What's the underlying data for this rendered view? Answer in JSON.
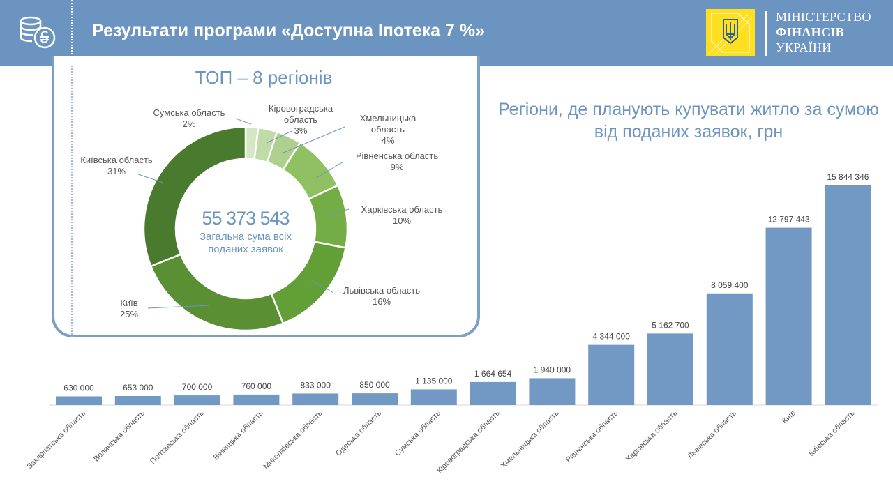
{
  "header": {
    "title": "Результати програми «Доступна Іпотека 7 %»",
    "icon": "coins-hryvnia-icon",
    "ministry_lines": [
      "МІНІСТЕРСТВО",
      "ФІНАНСІВ",
      "УКРАЇНИ"
    ],
    "emblem": "trident-emblem-icon"
  },
  "colors": {
    "header_bg": "#6b95c0",
    "bar": "#7199c4",
    "emblem_bg": "#ffe021",
    "donut": [
      "#d5e6c3",
      "#c1dba8",
      "#aed08d",
      "#8fc061",
      "#74ac46",
      "#629f36",
      "#5a8f34",
      "#4a7a2d"
    ]
  },
  "chart_data": [
    {
      "type": "pie",
      "title": "ТОП – 8 регіонів",
      "center_value": "55 373 543",
      "center_caption": "Загальна сума всіх поданих заявок",
      "slices": [
        {
          "name": "Сумська  область",
          "percent": 2
        },
        {
          "name": "Кіровоградська область",
          "percent": 3
        },
        {
          "name": "Хмельницька область",
          "percent": 4
        },
        {
          "name": "Рівненська  область",
          "percent": 9
        },
        {
          "name": "Харківська  область",
          "percent": 10
        },
        {
          "name": "Львівська  область",
          "percent": 16
        },
        {
          "name": "Київ",
          "percent": 25
        },
        {
          "name": "Київська  область",
          "percent": 31
        }
      ]
    },
    {
      "type": "bar",
      "title": "Регіони, де планують купувати житло за сумою від поданих заявок, грн",
      "categories": [
        "Закарпатська область",
        "Волинська область",
        "Полтавська область",
        "Вінницька область",
        "Миколаївська область",
        "Одеська область",
        "Сумська область",
        "Кіровоградська область",
        "Хмельницька область",
        "Рівненська область",
        "Харківська область",
        "Львівська область",
        "Київ",
        "Київська область"
      ],
      "values": [
        630000,
        653000,
        700000,
        760000,
        833000,
        850000,
        1135000,
        1664654,
        1940000,
        4344000,
        5162700,
        8059400,
        12797443,
        15844346
      ],
      "value_labels": [
        "630 000",
        "653 000",
        "700 000",
        "760 000",
        "833 000",
        "850 000",
        "1 135 000",
        "1 664 654",
        "1 940 000",
        "4 344 000",
        "5 162 700",
        "8 059 400",
        "12 797 443",
        "15 844 346"
      ],
      "grid": false,
      "legend": "none"
    }
  ]
}
